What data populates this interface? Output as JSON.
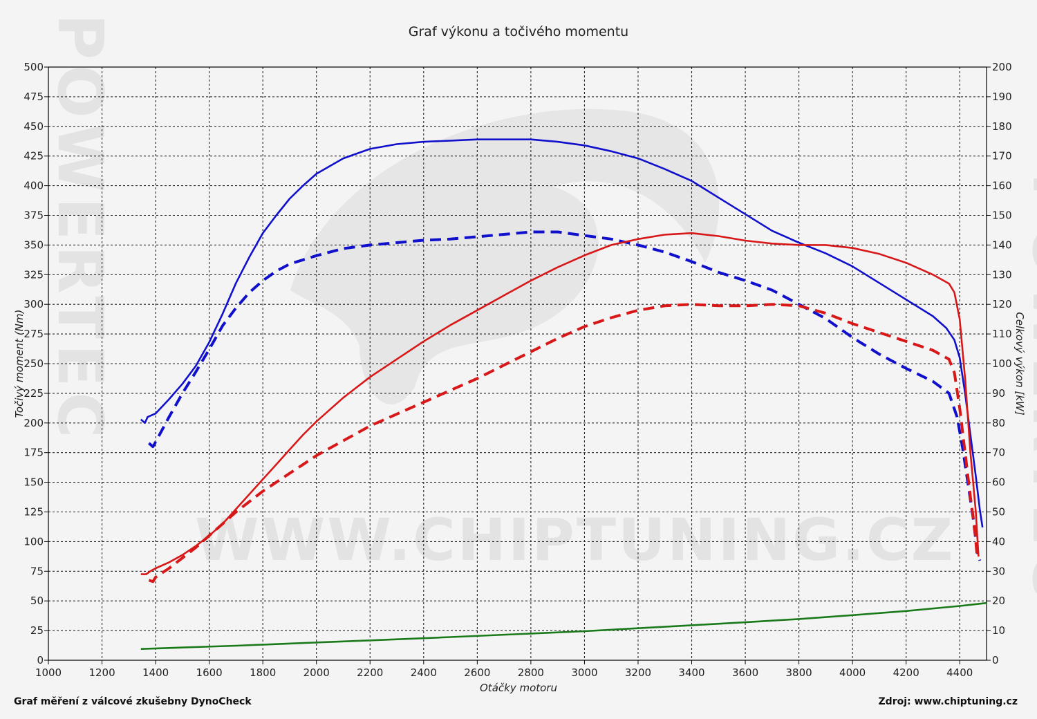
{
  "chart_data": {
    "type": "line",
    "title": "Graf výkonu a točivého momentu",
    "xlabel": "Otáčky motoru",
    "ylabel_left": "Točivý moment (Nm)",
    "ylabel_right": "Celkový výkon [kW]",
    "xlim": [
      1000,
      4500
    ],
    "ylim_left": [
      0,
      500
    ],
    "ylim_right": [
      0,
      200
    ],
    "x_ticks": [
      1000,
      1200,
      1400,
      1600,
      1800,
      2000,
      2200,
      2400,
      2600,
      2800,
      3000,
      3200,
      3400,
      3600,
      3800,
      4000,
      4200,
      4400
    ],
    "y_ticks_left": [
      0,
      25,
      50,
      75,
      100,
      125,
      150,
      175,
      200,
      225,
      250,
      275,
      300,
      325,
      350,
      375,
      400,
      425,
      450,
      475,
      500
    ],
    "y_ticks_right": [
      0,
      10,
      20,
      30,
      40,
      50,
      60,
      70,
      80,
      90,
      100,
      110,
      120,
      130,
      140,
      150,
      160,
      170,
      180,
      190,
      200
    ],
    "grid": true,
    "series": [
      {
        "axis": "left",
        "color": "#1010cc",
        "style": "solid",
        "points": [
          [
            1345,
            203
          ],
          [
            1360,
            200
          ],
          [
            1370,
            205
          ],
          [
            1400,
            208
          ],
          [
            1450,
            220
          ],
          [
            1500,
            233
          ],
          [
            1550,
            248
          ],
          [
            1600,
            268
          ],
          [
            1650,
            292
          ],
          [
            1700,
            318
          ],
          [
            1750,
            340
          ],
          [
            1800,
            360
          ],
          [
            1850,
            375
          ],
          [
            1900,
            389
          ],
          [
            1950,
            400
          ],
          [
            2000,
            410
          ],
          [
            2100,
            423
          ],
          [
            2200,
            431
          ],
          [
            2300,
            435
          ],
          [
            2400,
            437
          ],
          [
            2500,
            438
          ],
          [
            2600,
            439
          ],
          [
            2700,
            439
          ],
          [
            2800,
            439
          ],
          [
            2900,
            437
          ],
          [
            3000,
            434
          ],
          [
            3100,
            429
          ],
          [
            3200,
            423
          ],
          [
            3300,
            414
          ],
          [
            3400,
            404
          ],
          [
            3500,
            390
          ],
          [
            3600,
            376
          ],
          [
            3700,
            362
          ],
          [
            3800,
            352
          ],
          [
            3900,
            343
          ],
          [
            4000,
            332
          ],
          [
            4100,
            318
          ],
          [
            4200,
            304
          ],
          [
            4300,
            290
          ],
          [
            4350,
            280
          ],
          [
            4380,
            270
          ],
          [
            4400,
            255
          ],
          [
            4420,
            225
          ],
          [
            4440,
            190
          ],
          [
            4460,
            155
          ],
          [
            4475,
            127
          ],
          [
            4485,
            112
          ]
        ]
      },
      {
        "axis": "left",
        "color": "#1010cc",
        "style": "dashed",
        "points": [
          [
            1375,
            183
          ],
          [
            1390,
            180
          ],
          [
            1400,
            184
          ],
          [
            1450,
            205
          ],
          [
            1500,
            225
          ],
          [
            1550,
            243
          ],
          [
            1600,
            262
          ],
          [
            1650,
            282
          ],
          [
            1700,
            297
          ],
          [
            1750,
            310
          ],
          [
            1800,
            320
          ],
          [
            1850,
            328
          ],
          [
            1900,
            334
          ],
          [
            2000,
            341
          ],
          [
            2100,
            347
          ],
          [
            2200,
            350
          ],
          [
            2300,
            352
          ],
          [
            2400,
            354
          ],
          [
            2500,
            355
          ],
          [
            2600,
            357
          ],
          [
            2700,
            359
          ],
          [
            2800,
            361
          ],
          [
            2900,
            361
          ],
          [
            3000,
            358
          ],
          [
            3100,
            355
          ],
          [
            3200,
            350
          ],
          [
            3300,
            344
          ],
          [
            3400,
            336
          ],
          [
            3500,
            327
          ],
          [
            3600,
            320
          ],
          [
            3700,
            312
          ],
          [
            3800,
            300
          ],
          [
            3900,
            288
          ],
          [
            4000,
            272
          ],
          [
            4100,
            258
          ],
          [
            4200,
            246
          ],
          [
            4300,
            235
          ],
          [
            4360,
            225
          ],
          [
            4390,
            205
          ],
          [
            4410,
            180
          ],
          [
            4430,
            150
          ],
          [
            4450,
            120
          ],
          [
            4465,
            92
          ],
          [
            4475,
            84
          ]
        ]
      },
      {
        "axis": "right",
        "color": "#d81818",
        "style": "solid",
        "points": [
          [
            1345,
            29
          ],
          [
            1365,
            29
          ],
          [
            1380,
            30
          ],
          [
            1400,
            31
          ],
          [
            1450,
            33
          ],
          [
            1500,
            35.5
          ],
          [
            1550,
            38.5
          ],
          [
            1600,
            42
          ],
          [
            1650,
            46
          ],
          [
            1700,
            51
          ],
          [
            1750,
            56
          ],
          [
            1800,
            61
          ],
          [
            1850,
            66
          ],
          [
            1900,
            71
          ],
          [
            1950,
            76
          ],
          [
            2000,
            80.5
          ],
          [
            2100,
            88.5
          ],
          [
            2200,
            95.5
          ],
          [
            2300,
            101.5
          ],
          [
            2400,
            107.5
          ],
          [
            2500,
            113
          ],
          [
            2600,
            118
          ],
          [
            2700,
            123
          ],
          [
            2800,
            128
          ],
          [
            2900,
            132.5
          ],
          [
            3000,
            136.5
          ],
          [
            3100,
            140
          ],
          [
            3200,
            142
          ],
          [
            3300,
            143.5
          ],
          [
            3400,
            144
          ],
          [
            3500,
            143
          ],
          [
            3600,
            141.5
          ],
          [
            3700,
            140.5
          ],
          [
            3800,
            140
          ],
          [
            3900,
            140
          ],
          [
            4000,
            139
          ],
          [
            4100,
            137
          ],
          [
            4200,
            134
          ],
          [
            4300,
            130
          ],
          [
            4360,
            127
          ],
          [
            4380,
            124
          ],
          [
            4400,
            115
          ],
          [
            4420,
            95
          ],
          [
            4440,
            70
          ],
          [
            4460,
            50
          ],
          [
            4470,
            35
          ]
        ]
      },
      {
        "axis": "right",
        "color": "#d81818",
        "style": "dashed",
        "points": [
          [
            1375,
            27
          ],
          [
            1390,
            26.5
          ],
          [
            1400,
            28
          ],
          [
            1450,
            31
          ],
          [
            1500,
            34.5
          ],
          [
            1550,
            38
          ],
          [
            1600,
            42
          ],
          [
            1650,
            46
          ],
          [
            1700,
            50
          ],
          [
            1750,
            53.5
          ],
          [
            1800,
            57
          ],
          [
            1850,
            60
          ],
          [
            1900,
            63
          ],
          [
            1950,
            66
          ],
          [
            2000,
            69
          ],
          [
            2100,
            74
          ],
          [
            2200,
            79
          ],
          [
            2300,
            83
          ],
          [
            2400,
            87
          ],
          [
            2500,
            91
          ],
          [
            2600,
            95
          ],
          [
            2700,
            99.5
          ],
          [
            2800,
            104
          ],
          [
            2900,
            108.5
          ],
          [
            3000,
            112.5
          ],
          [
            3100,
            115.5
          ],
          [
            3200,
            118
          ],
          [
            3300,
            119.5
          ],
          [
            3400,
            120
          ],
          [
            3500,
            119.5
          ],
          [
            3600,
            119.5
          ],
          [
            3700,
            120
          ],
          [
            3800,
            119.5
          ],
          [
            3900,
            117
          ],
          [
            4000,
            113.5
          ],
          [
            4100,
            110.5
          ],
          [
            4200,
            107.5
          ],
          [
            4300,
            104.5
          ],
          [
            4360,
            101.5
          ],
          [
            4380,
            97
          ],
          [
            4400,
            85
          ],
          [
            4420,
            70
          ],
          [
            4440,
            55
          ],
          [
            4455,
            45
          ],
          [
            4465,
            35
          ]
        ]
      },
      {
        "axis": "right",
        "color": "#1a7a1a",
        "style": "solid",
        "points": [
          [
            1345,
            3.8
          ],
          [
            1500,
            4.3
          ],
          [
            1700,
            4.9
          ],
          [
            2000,
            6
          ],
          [
            2200,
            6.7
          ],
          [
            2500,
            7.8
          ],
          [
            2800,
            9
          ],
          [
            3000,
            9.8
          ],
          [
            3200,
            10.8
          ],
          [
            3400,
            11.8
          ],
          [
            3600,
            12.8
          ],
          [
            3800,
            13.9
          ],
          [
            4000,
            15.2
          ],
          [
            4200,
            16.6
          ],
          [
            4400,
            18.3
          ],
          [
            4500,
            19.3
          ]
        ]
      }
    ]
  },
  "footer": {
    "left": "Graf měření z válcové zkušebny DynoCheck",
    "right": "Zdroj: www.chiptuning.cz"
  },
  "watermark": {
    "url": "WWW.CHIPTUNING.CZ",
    "side": "POWERTEC"
  }
}
